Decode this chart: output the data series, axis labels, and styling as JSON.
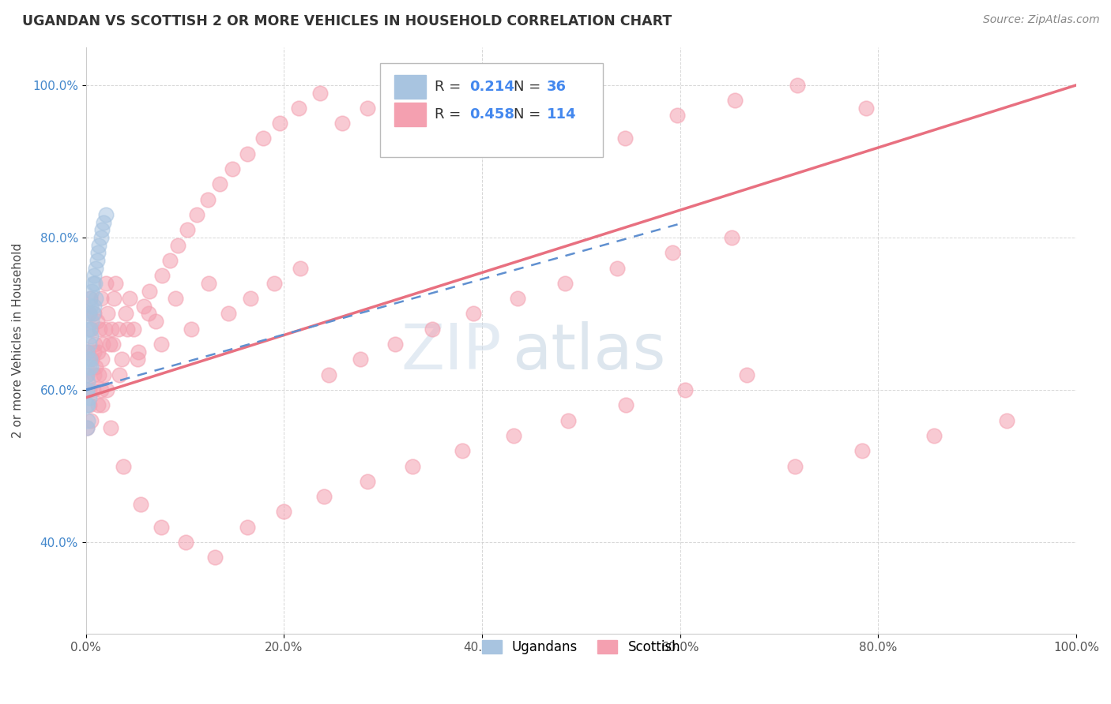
{
  "title": "UGANDAN VS SCOTTISH 2 OR MORE VEHICLES IN HOUSEHOLD CORRELATION CHART",
  "source_text": "Source: ZipAtlas.com",
  "ylabel": "2 or more Vehicles in Household",
  "watermark_zip": "ZIP",
  "watermark_atlas": "atlas",
  "xlim": [
    0.0,
    1.0
  ],
  "ylim": [
    0.28,
    1.05
  ],
  "xtick_vals": [
    0.0,
    0.2,
    0.4,
    0.6,
    0.8,
    1.0
  ],
  "xtick_labels": [
    "0.0%",
    "20.0%",
    "40.0%",
    "60.0%",
    "80.0%",
    "100.0%"
  ],
  "ytick_vals": [
    0.4,
    0.6,
    0.8,
    1.0
  ],
  "ytick_labels": [
    "40.0%",
    "60.0%",
    "80.0%",
    "100.0%"
  ],
  "ugandan_color": "#a8c4e0",
  "scottish_color": "#f4a0b0",
  "ugandan_line_color": "#6090d0",
  "scottish_line_color": "#e87080",
  "ugandan_R": 0.214,
  "ugandan_N": 36,
  "scottish_R": 0.458,
  "scottish_N": 114,
  "legend_label_ugandan": "Ugandans",
  "legend_label_scottish": "Scottish",
  "ugandan_x": [
    0.001,
    0.001,
    0.001,
    0.001,
    0.001,
    0.002,
    0.002,
    0.002,
    0.002,
    0.002,
    0.003,
    0.003,
    0.003,
    0.003,
    0.004,
    0.004,
    0.004,
    0.005,
    0.005,
    0.005,
    0.006,
    0.006,
    0.007,
    0.007,
    0.008,
    0.008,
    0.009,
    0.01,
    0.01,
    0.011,
    0.012,
    0.013,
    0.015,
    0.016,
    0.018,
    0.02
  ],
  "ugandan_y": [
    0.62,
    0.65,
    0.6,
    0.58,
    0.55,
    0.68,
    0.64,
    0.61,
    0.58,
    0.56,
    0.7,
    0.66,
    0.63,
    0.59,
    0.72,
    0.68,
    0.64,
    0.71,
    0.67,
    0.63,
    0.73,
    0.69,
    0.74,
    0.7,
    0.75,
    0.71,
    0.74,
    0.76,
    0.72,
    0.77,
    0.78,
    0.79,
    0.8,
    0.81,
    0.82,
    0.83
  ],
  "scottish_x": [
    0.001,
    0.002,
    0.003,
    0.004,
    0.005,
    0.006,
    0.007,
    0.008,
    0.009,
    0.01,
    0.011,
    0.012,
    0.013,
    0.014,
    0.015,
    0.016,
    0.017,
    0.018,
    0.019,
    0.02,
    0.022,
    0.024,
    0.026,
    0.028,
    0.03,
    0.033,
    0.036,
    0.04,
    0.044,
    0.048,
    0.053,
    0.058,
    0.064,
    0.07,
    0.077,
    0.085,
    0.093,
    0.102,
    0.112,
    0.123,
    0.135,
    0.148,
    0.163,
    0.179,
    0.196,
    0.215,
    0.236,
    0.259,
    0.284,
    0.312,
    0.342,
    0.375,
    0.412,
    0.452,
    0.496,
    0.544,
    0.597,
    0.655,
    0.718,
    0.788,
    0.001,
    0.003,
    0.005,
    0.008,
    0.012,
    0.016,
    0.021,
    0.027,
    0.034,
    0.042,
    0.052,
    0.063,
    0.076,
    0.09,
    0.106,
    0.124,
    0.144,
    0.166,
    0.19,
    0.216,
    0.245,
    0.277,
    0.312,
    0.35,
    0.391,
    0.436,
    0.484,
    0.536,
    0.592,
    0.652,
    0.716,
    0.784,
    0.856,
    0.93,
    0.003,
    0.008,
    0.015,
    0.025,
    0.038,
    0.055,
    0.076,
    0.101,
    0.13,
    0.163,
    0.2,
    0.24,
    0.284,
    0.33,
    0.38,
    0.432,
    0.487,
    0.545,
    0.605,
    0.667
  ],
  "scottish_y": [
    0.62,
    0.65,
    0.58,
    0.72,
    0.68,
    0.64,
    0.6,
    0.7,
    0.66,
    0.63,
    0.69,
    0.65,
    0.62,
    0.68,
    0.72,
    0.58,
    0.66,
    0.62,
    0.68,
    0.74,
    0.7,
    0.66,
    0.68,
    0.72,
    0.74,
    0.68,
    0.64,
    0.7,
    0.72,
    0.68,
    0.65,
    0.71,
    0.73,
    0.69,
    0.75,
    0.77,
    0.79,
    0.81,
    0.83,
    0.85,
    0.87,
    0.89,
    0.91,
    0.93,
    0.95,
    0.97,
    0.99,
    0.95,
    0.97,
    0.93,
    0.95,
    0.97,
    0.99,
    0.97,
    0.95,
    0.93,
    0.96,
    0.98,
    1.0,
    0.97,
    0.55,
    0.6,
    0.56,
    0.62,
    0.58,
    0.64,
    0.6,
    0.66,
    0.62,
    0.68,
    0.64,
    0.7,
    0.66,
    0.72,
    0.68,
    0.74,
    0.7,
    0.72,
    0.74,
    0.76,
    0.62,
    0.64,
    0.66,
    0.68,
    0.7,
    0.72,
    0.74,
    0.76,
    0.78,
    0.8,
    0.5,
    0.52,
    0.54,
    0.56,
    0.7,
    0.65,
    0.6,
    0.55,
    0.5,
    0.45,
    0.42,
    0.4,
    0.38,
    0.42,
    0.44,
    0.46,
    0.48,
    0.5,
    0.52,
    0.54,
    0.56,
    0.58,
    0.6,
    0.62
  ]
}
